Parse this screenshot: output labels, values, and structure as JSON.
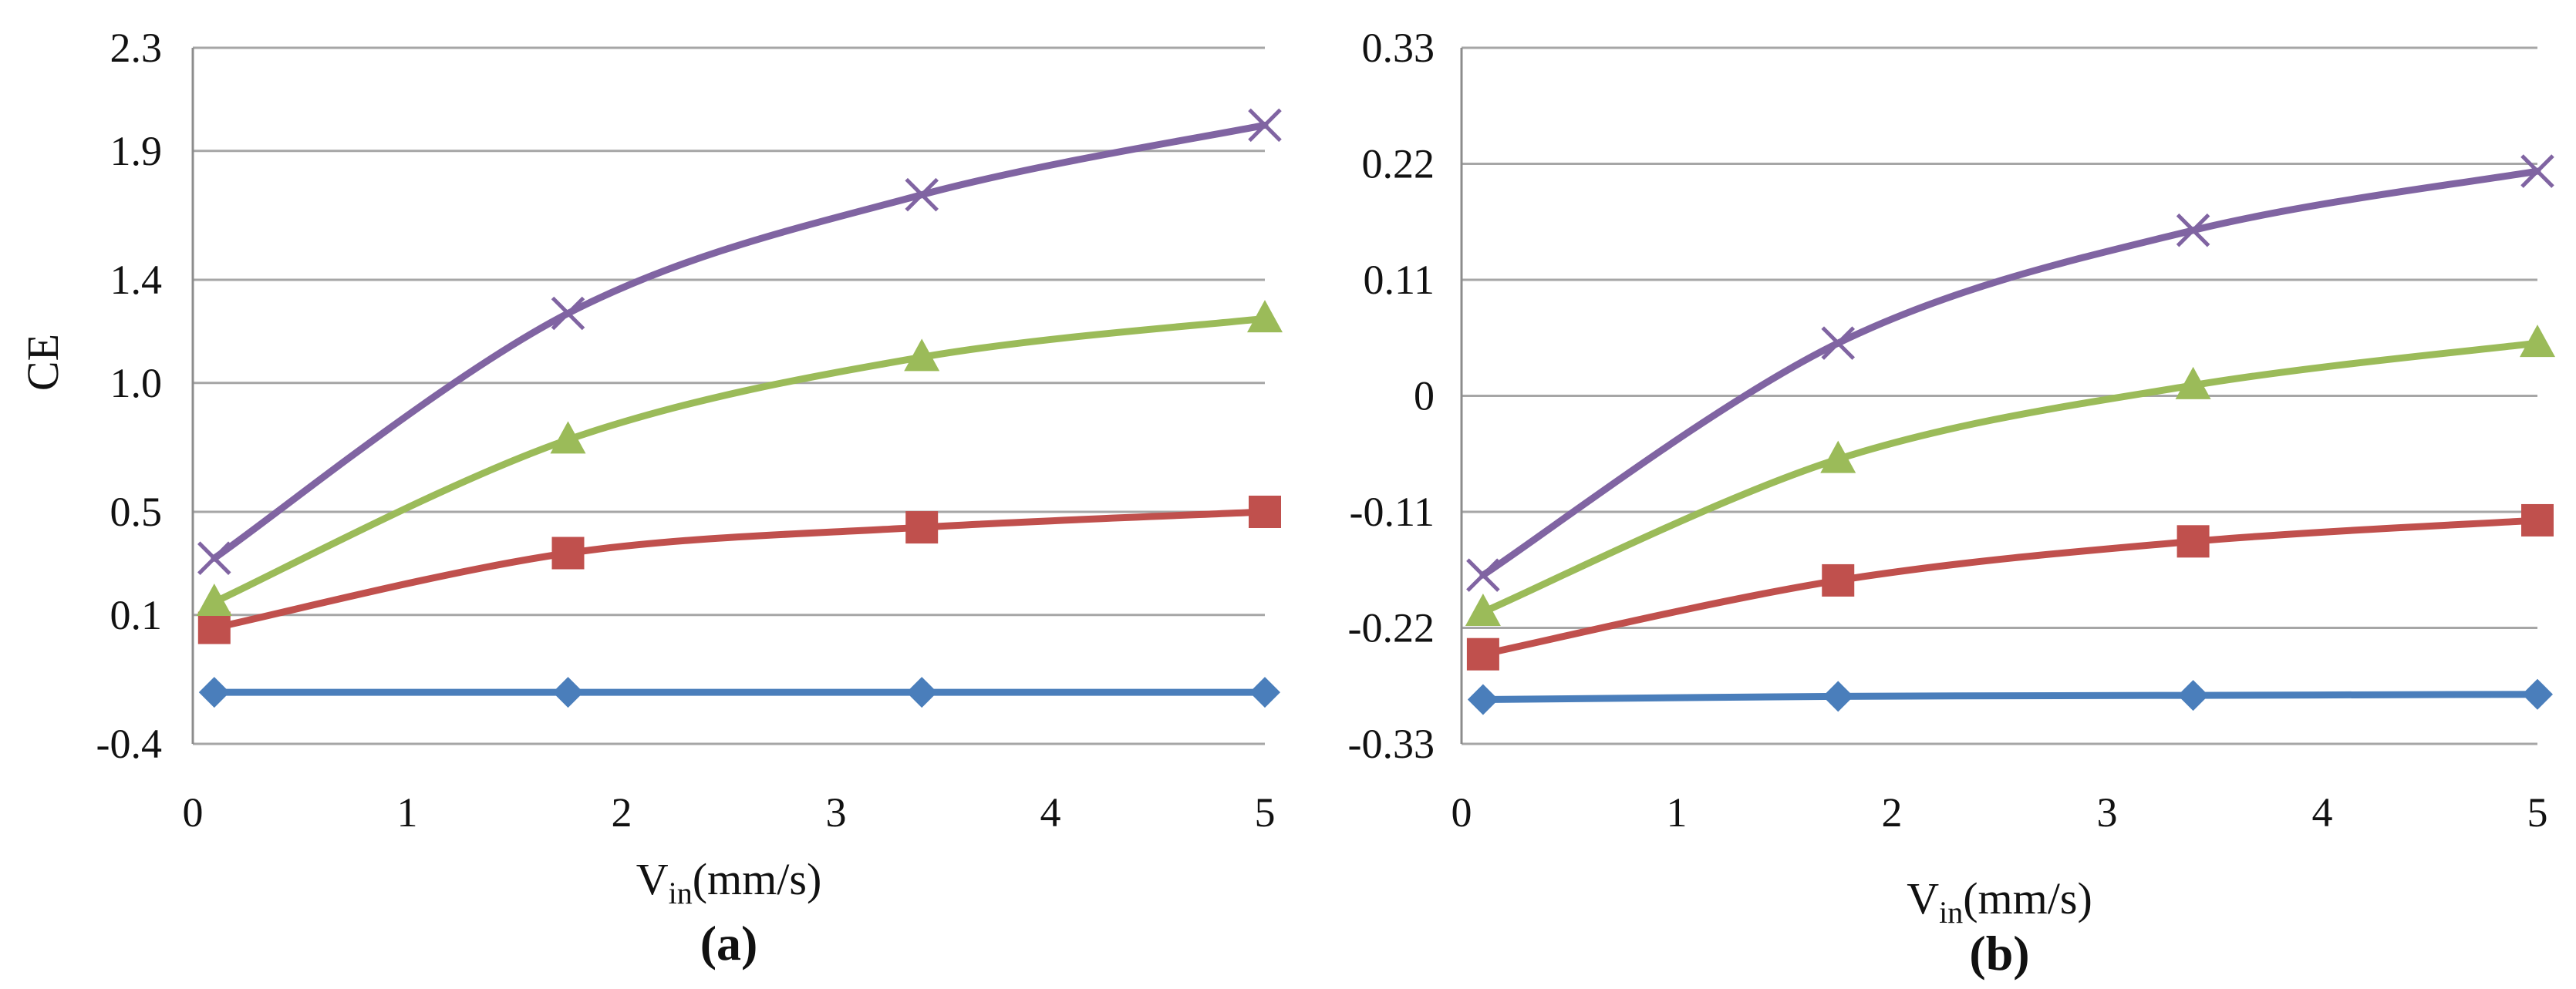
{
  "chart_data": [
    {
      "type": "line",
      "panel_label": "(a)",
      "ylabel": "CE",
      "xlabel": {
        "main": "V",
        "sub": "in",
        "unit": "(mm/s)"
      },
      "xlim": [
        0,
        5
      ],
      "ylim": [
        -0.4,
        2.3
      ],
      "x_ticks": [
        "0",
        "1",
        "2",
        "3",
        "4",
        "5"
      ],
      "y_ticks": [
        {
          "value": -0.4,
          "label": "-0.4"
        },
        {
          "value": 0.1,
          "label": "0.1"
        },
        {
          "value": 0.5,
          "label": "0.5"
        },
        {
          "value": 1.0,
          "label": "1.0"
        },
        {
          "value": 1.4,
          "label": "1.4"
        },
        {
          "value": 1.9,
          "label": "1.9"
        },
        {
          "value": 2.3,
          "label": "2.3"
        }
      ],
      "grid": true,
      "series": [
        {
          "marker": "diamond",
          "color": "#4a7ebb",
          "x": [
            0.1,
            1.75,
            3.4,
            5.0
          ],
          "y": [
            -0.2,
            -0.2,
            -0.2,
            -0.2
          ]
        },
        {
          "marker": "square",
          "color": "#c0504d",
          "x": [
            0.1,
            1.75,
            3.4,
            5.0
          ],
          "y": [
            0.05,
            0.34,
            0.44,
            0.5
          ]
        },
        {
          "marker": "triangle",
          "color": "#9bbb59",
          "x": [
            0.1,
            1.75,
            3.4,
            5.0
          ],
          "y": [
            0.15,
            0.78,
            1.1,
            1.25
          ]
        },
        {
          "marker": "x",
          "color": "#8064a2",
          "x": [
            0.1,
            1.75,
            3.4,
            5.0
          ],
          "y": [
            0.32,
            1.27,
            1.73,
            2.0
          ]
        }
      ]
    },
    {
      "type": "line",
      "panel_label": "(b)",
      "ylabel": "",
      "xlabel": {
        "main": "V",
        "sub": "in",
        "unit": "(mm/s)"
      },
      "xlim": [
        0,
        5
      ],
      "ylim": [
        -0.33,
        0.33
      ],
      "x_ticks": [
        "0",
        "1",
        "2",
        "3",
        "4",
        "5"
      ],
      "y_ticks": [
        {
          "value": -0.33,
          "label": "-0.33"
        },
        {
          "value": -0.22,
          "label": "-0.22"
        },
        {
          "value": -0.11,
          "label": "-0.11"
        },
        {
          "value": 0,
          "label": "0"
        },
        {
          "value": 0.11,
          "label": "0.11"
        },
        {
          "value": 0.22,
          "label": "0.22"
        },
        {
          "value": 0.33,
          "label": "0.33"
        }
      ],
      "grid": true,
      "series": [
        {
          "marker": "diamond",
          "color": "#4a7ebb",
          "x": [
            0.1,
            1.75,
            3.4,
            5.0
          ],
          "y": [
            -0.288,
            -0.285,
            -0.284,
            -0.283
          ]
        },
        {
          "marker": "square",
          "color": "#c0504d",
          "x": [
            0.1,
            1.75,
            3.4,
            5.0
          ],
          "y": [
            -0.245,
            -0.175,
            -0.138,
            -0.118
          ]
        },
        {
          "marker": "triangle",
          "color": "#9bbb59",
          "x": [
            0.1,
            1.75,
            3.4,
            5.0
          ],
          "y": [
            -0.205,
            -0.06,
            0.01,
            0.05
          ]
        },
        {
          "marker": "x",
          "color": "#8064a2",
          "x": [
            0.1,
            1.75,
            3.4,
            5.0
          ],
          "y": [
            -0.17,
            0.05,
            0.157,
            0.213
          ]
        }
      ]
    }
  ]
}
